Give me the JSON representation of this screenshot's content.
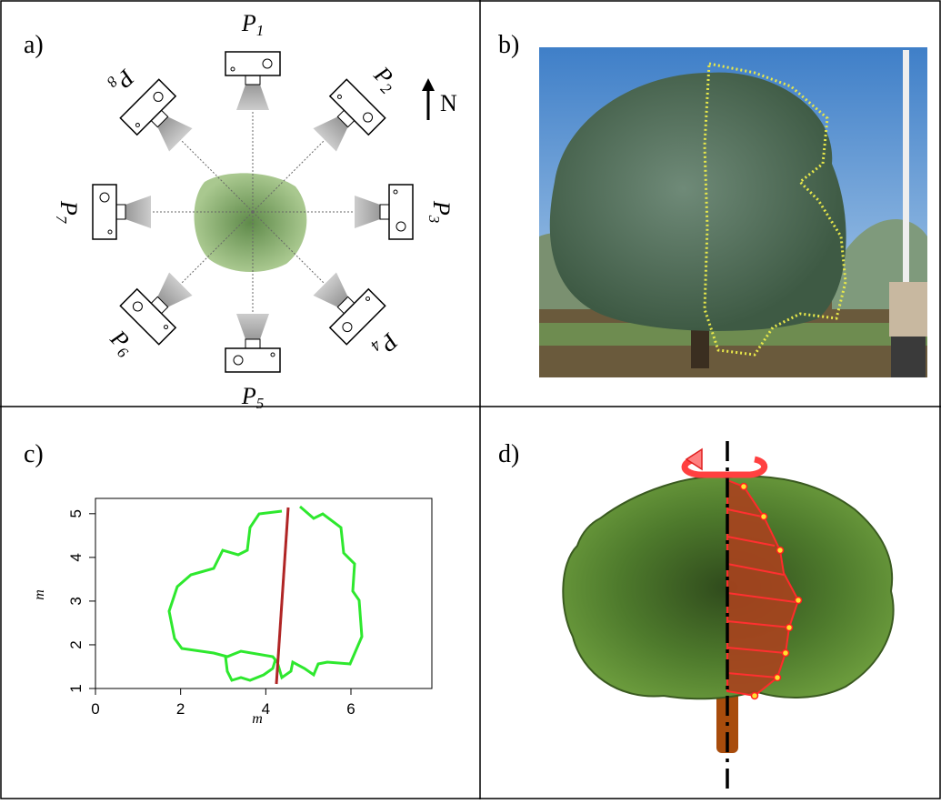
{
  "panels": {
    "a": {
      "label": "a)",
      "north": "N",
      "cameras": [
        {
          "letter": "P",
          "subscript": "1"
        },
        {
          "letter": "P",
          "subscript": "2"
        },
        {
          "letter": "P",
          "subscript": "3"
        },
        {
          "letter": "P",
          "subscript": "4"
        },
        {
          "letter": "P",
          "subscript": "5"
        },
        {
          "letter": "P",
          "subscript": "6"
        },
        {
          "letter": "P",
          "subscript": "7"
        },
        {
          "letter": "P",
          "subscript": "8"
        }
      ]
    },
    "b": {
      "label": "b)"
    },
    "c": {
      "label": "c)",
      "xlabel": "m",
      "ylabel": "m",
      "xlim": [
        0,
        7.9
      ],
      "ylim": [
        1,
        5.35
      ],
      "xticks": [
        0,
        2,
        4,
        6
      ],
      "yticks": [
        1,
        2,
        3,
        4,
        5
      ]
    },
    "d": {
      "label": "d)"
    }
  }
}
